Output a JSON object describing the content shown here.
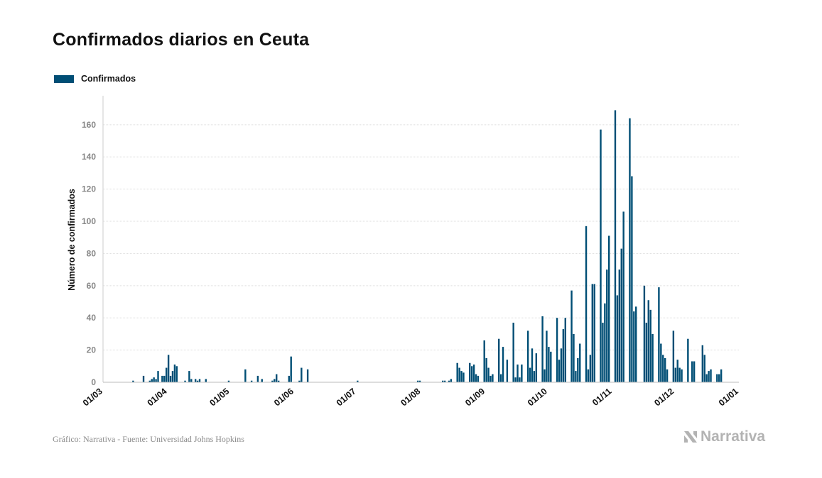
{
  "title": "Confirmados diarios en Ceuta",
  "footer": "Gráfico: Narrativa - Fuente: Universidad Johns Hopkins",
  "brand": "Narrativa",
  "colors": {
    "bar": "#004e75",
    "grid": "#dddddd",
    "tick": "#888888",
    "axis_label": "#111111"
  },
  "chart_data": {
    "type": "bar",
    "ylabel": "Número de confirmados",
    "legend": [
      "Confirmados"
    ],
    "legend_position": "top-left",
    "grid": true,
    "ylim": [
      0,
      178
    ],
    "yticks": [
      0,
      20,
      40,
      60,
      80,
      100,
      120,
      140,
      160
    ],
    "xlim": [
      "2020-03-01",
      "2021-01-01"
    ],
    "xticks": [
      "01/03",
      "01/04",
      "01/05",
      "01/06",
      "01/07",
      "01/08",
      "01/09",
      "01/10",
      "01/11",
      "01/12",
      "01/01"
    ],
    "xtick_dates": [
      "2020-03-01",
      "2020-04-01",
      "2020-05-01",
      "2020-06-01",
      "2020-07-01",
      "2020-08-01",
      "2020-09-01",
      "2020-10-01",
      "2020-11-01",
      "2020-12-01",
      "2021-01-01"
    ],
    "series": [
      {
        "name": "Confirmados",
        "points": [
          [
            "2020-03-15",
            1
          ],
          [
            "2020-03-20",
            4
          ],
          [
            "2020-03-23",
            1
          ],
          [
            "2020-03-24",
            2
          ],
          [
            "2020-03-25",
            3
          ],
          [
            "2020-03-26",
            2
          ],
          [
            "2020-03-27",
            7
          ],
          [
            "2020-03-29",
            4
          ],
          [
            "2020-03-30",
            4
          ],
          [
            "2020-03-31",
            9
          ],
          [
            "2020-04-01",
            17
          ],
          [
            "2020-04-02",
            4
          ],
          [
            "2020-04-03",
            7
          ],
          [
            "2020-04-04",
            11
          ],
          [
            "2020-04-05",
            10
          ],
          [
            "2020-04-09",
            1
          ],
          [
            "2020-04-11",
            7
          ],
          [
            "2020-04-12",
            2
          ],
          [
            "2020-04-14",
            2
          ],
          [
            "2020-04-15",
            1
          ],
          [
            "2020-04-16",
            2
          ],
          [
            "2020-04-19",
            2
          ],
          [
            "2020-04-30",
            1
          ],
          [
            "2020-05-08",
            8
          ],
          [
            "2020-05-11",
            1
          ],
          [
            "2020-05-14",
            4
          ],
          [
            "2020-05-16",
            2
          ],
          [
            "2020-05-21",
            1
          ],
          [
            "2020-05-22",
            2
          ],
          [
            "2020-05-23",
            5
          ],
          [
            "2020-05-24",
            1
          ],
          [
            "2020-05-29",
            4
          ],
          [
            "2020-05-30",
            16
          ],
          [
            "2020-06-03",
            1
          ],
          [
            "2020-06-04",
            9
          ],
          [
            "2020-06-07",
            8
          ],
          [
            "2020-07-01",
            1
          ],
          [
            "2020-07-30",
            1
          ],
          [
            "2020-07-31",
            1
          ],
          [
            "2020-08-11",
            1
          ],
          [
            "2020-08-12",
            1
          ],
          [
            "2020-08-14",
            1
          ],
          [
            "2020-08-15",
            2
          ],
          [
            "2020-08-18",
            12
          ],
          [
            "2020-08-19",
            9
          ],
          [
            "2020-08-20",
            7
          ],
          [
            "2020-08-21",
            6
          ],
          [
            "2020-08-24",
            12
          ],
          [
            "2020-08-25",
            10
          ],
          [
            "2020-08-26",
            11
          ],
          [
            "2020-08-27",
            5
          ],
          [
            "2020-08-28",
            4
          ],
          [
            "2020-08-31",
            26
          ],
          [
            "2020-09-01",
            15
          ],
          [
            "2020-09-02",
            9
          ],
          [
            "2020-09-03",
            4
          ],
          [
            "2020-09-04",
            5
          ],
          [
            "2020-09-07",
            27
          ],
          [
            "2020-09-08",
            5
          ],
          [
            "2020-09-09",
            22
          ],
          [
            "2020-09-11",
            14
          ],
          [
            "2020-09-14",
            37
          ],
          [
            "2020-09-15",
            3
          ],
          [
            "2020-09-16",
            11
          ],
          [
            "2020-09-17",
            3
          ],
          [
            "2020-09-18",
            11
          ],
          [
            "2020-09-21",
            32
          ],
          [
            "2020-09-22",
            9
          ],
          [
            "2020-09-23",
            21
          ],
          [
            "2020-09-24",
            7
          ],
          [
            "2020-09-25",
            18
          ],
          [
            "2020-09-28",
            41
          ],
          [
            "2020-09-29",
            8
          ],
          [
            "2020-09-30",
            32
          ],
          [
            "2020-10-01",
            22
          ],
          [
            "2020-10-02",
            19
          ],
          [
            "2020-10-05",
            40
          ],
          [
            "2020-10-06",
            14
          ],
          [
            "2020-10-07",
            21
          ],
          [
            "2020-10-08",
            33
          ],
          [
            "2020-10-09",
            40
          ],
          [
            "2020-10-12",
            57
          ],
          [
            "2020-10-13",
            30
          ],
          [
            "2020-10-14",
            7
          ],
          [
            "2020-10-15",
            15
          ],
          [
            "2020-10-16",
            24
          ],
          [
            "2020-10-19",
            97
          ],
          [
            "2020-10-20",
            8
          ],
          [
            "2020-10-21",
            17
          ],
          [
            "2020-10-22",
            61
          ],
          [
            "2020-10-23",
            61
          ],
          [
            "2020-10-26",
            157
          ],
          [
            "2020-10-27",
            37
          ],
          [
            "2020-10-28",
            49
          ],
          [
            "2020-10-29",
            70
          ],
          [
            "2020-10-30",
            91
          ],
          [
            "2020-11-02",
            169
          ],
          [
            "2020-11-03",
            54
          ],
          [
            "2020-11-04",
            70
          ],
          [
            "2020-11-05",
            83
          ],
          [
            "2020-11-06",
            106
          ],
          [
            "2020-11-09",
            164
          ],
          [
            "2020-11-10",
            128
          ],
          [
            "2020-11-11",
            44
          ],
          [
            "2020-11-12",
            47
          ],
          [
            "2020-11-16",
            60
          ],
          [
            "2020-11-17",
            37
          ],
          [
            "2020-11-18",
            51
          ],
          [
            "2020-11-19",
            45
          ],
          [
            "2020-11-20",
            30
          ],
          [
            "2020-11-23",
            59
          ],
          [
            "2020-11-24",
            24
          ],
          [
            "2020-11-25",
            17
          ],
          [
            "2020-11-26",
            15
          ],
          [
            "2020-11-27",
            8
          ],
          [
            "2020-11-30",
            32
          ],
          [
            "2020-12-01",
            9
          ],
          [
            "2020-12-02",
            14
          ],
          [
            "2020-12-03",
            9
          ],
          [
            "2020-12-04",
            8
          ],
          [
            "2020-12-07",
            27
          ],
          [
            "2020-12-09",
            13
          ],
          [
            "2020-12-10",
            13
          ],
          [
            "2020-12-14",
            23
          ],
          [
            "2020-12-15",
            17
          ],
          [
            "2020-12-16",
            5
          ],
          [
            "2020-12-17",
            7
          ],
          [
            "2020-12-18",
            8
          ],
          [
            "2020-12-21",
            5
          ],
          [
            "2020-12-22",
            5
          ],
          [
            "2020-12-23",
            8
          ]
        ]
      }
    ]
  }
}
